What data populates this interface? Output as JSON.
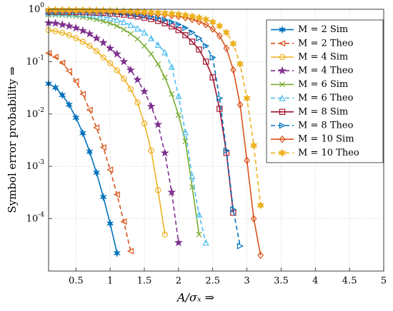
{
  "chart_data": {
    "type": "line",
    "x_label": "A/σₓ ⇒",
    "y_label": "Symbol error probability ⇒",
    "x": [
      0.1,
      0.2,
      0.3,
      0.4,
      0.5,
      0.6,
      0.7,
      0.8,
      0.9,
      1.0,
      1.1,
      1.2,
      1.3,
      1.4,
      1.5,
      1.6,
      1.7,
      1.8,
      1.9,
      2.0,
      2.1,
      2.2,
      2.3,
      2.4,
      2.5,
      2.6,
      2.7,
      2.8,
      2.9,
      3.0,
      3.1,
      3.2
    ],
    "xlim": [
      0.1,
      5
    ],
    "xticks": [
      0.5,
      1,
      1.5,
      2,
      2.5,
      3,
      3.5,
      4,
      4.5,
      5
    ],
    "ylim": [
      1e-05,
      1
    ],
    "yscale": "log",
    "yticks": [
      {
        "value": 1,
        "label": "10^0"
      },
      {
        "value": 0.1,
        "label": "10^-1"
      },
      {
        "value": 0.01,
        "label": "10^-2"
      },
      {
        "value": 0.001,
        "label": "10^-3"
      },
      {
        "value": 0.0001,
        "label": "10^-4"
      }
    ],
    "grid": true,
    "legend": "upper right",
    "series": [
      {
        "name": "M = 2 Sim",
        "color": "#0072bd",
        "marker": "asterisk",
        "linestyle": "solid",
        "values": [
          0.038,
          0.032,
          0.023,
          0.015,
          0.0085,
          0.0043,
          0.0019,
          0.00076,
          0.00026,
          8.1e-05,
          2.2e-05,
          null,
          null,
          null,
          null,
          null,
          null,
          null,
          null,
          null,
          null,
          null,
          null,
          null,
          null,
          null,
          null,
          null,
          null,
          null,
          null,
          null
        ]
      },
      {
        "name": "M = 2 Theo",
        "color": "#d95319",
        "marker": "triangle-left",
        "linestyle": "dashed",
        "values": [
          0.145,
          0.123,
          0.095,
          0.066,
          0.042,
          0.024,
          0.012,
          0.0055,
          0.0023,
          0.00086,
          0.00029,
          8.8e-05,
          2.4e-05,
          null,
          null,
          null,
          null,
          null,
          null,
          null,
          null,
          null,
          null,
          null,
          null,
          null,
          null,
          null,
          null,
          null,
          null,
          null
        ]
      },
      {
        "name": "M = 4 Sim",
        "color": "#edb120",
        "marker": "circle",
        "linestyle": "solid",
        "values": [
          0.4,
          0.38,
          0.355,
          0.32,
          0.28,
          0.24,
          0.2,
          0.16,
          0.12,
          0.093,
          0.068,
          0.047,
          0.03,
          0.0166,
          0.0066,
          0.002,
          0.00035,
          5e-05,
          null,
          null,
          null,
          null,
          null,
          null,
          null,
          null,
          null,
          null,
          null,
          null,
          null,
          null
        ]
      },
      {
        "name": "M = 4 Theo",
        "color": "#7e2f8e",
        "marker": "pentagram",
        "linestyle": "dashed",
        "values": [
          0.55,
          0.54,
          0.51,
          0.48,
          0.44,
          0.39,
          0.34,
          0.28,
          0.23,
          0.18,
          0.14,
          0.1,
          0.069,
          0.045,
          0.027,
          0.014,
          0.0063,
          0.0018,
          0.00032,
          3.5e-05,
          null,
          null,
          null,
          null,
          null,
          null,
          null,
          null,
          null,
          null,
          null,
          null
        ]
      },
      {
        "name": "M = 6 Sim",
        "color": "#77ac30",
        "marker": "x",
        "linestyle": "solid",
        "values": [
          0.79,
          0.785,
          0.775,
          0.76,
          0.74,
          0.71,
          0.68,
          0.64,
          0.59,
          0.54,
          0.48,
          0.41,
          0.34,
          0.27,
          0.2,
          0.14,
          0.09,
          0.05,
          0.024,
          0.0095,
          0.003,
          0.0004,
          5e-05,
          null,
          null,
          null,
          null,
          null,
          null,
          null,
          null,
          null
        ]
      },
      {
        "name": "M = 6 Theo",
        "color": "#4dbeee",
        "marker": "triangle-up",
        "linestyle": "dashed",
        "values": [
          0.85,
          0.845,
          0.84,
          0.83,
          0.82,
          0.8,
          0.78,
          0.75,
          0.72,
          0.68,
          0.63,
          0.57,
          0.5,
          0.43,
          0.36,
          0.28,
          0.21,
          0.15,
          0.08,
          0.022,
          0.0045,
          0.00065,
          0.00012,
          3.5e-05,
          null,
          null,
          null,
          null,
          null,
          null,
          null,
          null
        ]
      },
      {
        "name": "M = 8 Sim",
        "color": "#a2142f",
        "marker": "square",
        "linestyle": "solid",
        "values": [
          0.9,
          0.9,
          0.895,
          0.89,
          0.885,
          0.88,
          0.87,
          0.86,
          0.85,
          0.83,
          0.81,
          0.79,
          0.76,
          0.73,
          0.69,
          0.65,
          0.6,
          0.54,
          0.47,
          0.4,
          0.32,
          0.24,
          0.17,
          0.1,
          0.05,
          0.0126,
          0.0018,
          0.00013,
          null,
          null,
          null,
          null
        ]
      },
      {
        "name": "M = 8 Theo",
        "color": "#0072bd",
        "marker": "triangle-right",
        "linestyle": "dashed",
        "values": [
          0.92,
          0.92,
          0.915,
          0.91,
          0.905,
          0.9,
          0.89,
          0.885,
          0.875,
          0.86,
          0.85,
          0.83,
          0.81,
          0.78,
          0.75,
          0.72,
          0.68,
          0.63,
          0.57,
          0.51,
          0.44,
          0.36,
          0.28,
          0.2,
          0.12,
          0.02,
          0.002,
          0.00015,
          3e-05,
          null,
          null,
          null
        ]
      },
      {
        "name": "M = 10 Sim",
        "color": "#d95319",
        "marker": "diamond",
        "linestyle": "solid",
        "values": [
          0.95,
          0.95,
          0.945,
          0.94,
          0.94,
          0.935,
          0.93,
          0.925,
          0.92,
          0.91,
          0.9,
          0.89,
          0.88,
          0.865,
          0.85,
          0.83,
          0.81,
          0.79,
          0.76,
          0.73,
          0.69,
          0.64,
          0.58,
          0.51,
          0.42,
          0.31,
          0.18,
          0.07,
          0.015,
          0.0013,
          0.0001,
          2e-05
        ]
      },
      {
        "name": "M = 10 Theo",
        "color": "#edb120",
        "marker": "hexagram",
        "linestyle": "dashed",
        "values": [
          0.97,
          0.97,
          0.97,
          0.965,
          0.96,
          0.96,
          0.955,
          0.95,
          0.945,
          0.94,
          0.93,
          0.92,
          0.91,
          0.9,
          0.89,
          0.87,
          0.86,
          0.84,
          0.82,
          0.8,
          0.77,
          0.73,
          0.69,
          0.64,
          0.57,
          0.48,
          0.36,
          0.22,
          0.09,
          0.02,
          0.0025,
          0.00018
        ]
      }
    ]
  }
}
